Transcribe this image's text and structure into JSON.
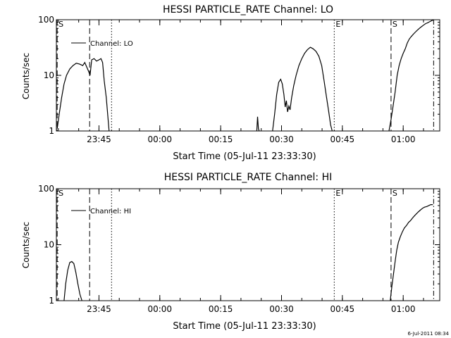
{
  "footer": {
    "timestamp": "6-Jul-2011 08:34"
  },
  "chart_data": [
    {
      "type": "line",
      "title": "HESSI PARTICLE_RATE Channel: LO",
      "xlabel": "Start Time (05-Jul-11 23:33:30)",
      "ylabel": "Counts/sec",
      "yscale": "log",
      "ylim": [
        1,
        100
      ],
      "xlim": [
        -10.5,
        84
      ],
      "x_unit": "minutes after 23:45",
      "yticks": [
        {
          "value": 1,
          "label": "1"
        },
        {
          "value": 10,
          "label": "10"
        },
        {
          "value": 100,
          "label": "100"
        }
      ],
      "xticks": [
        {
          "value": 0,
          "label": "23:45"
        },
        {
          "value": 15,
          "label": "00:00"
        },
        {
          "value": 30,
          "label": "00:15"
        },
        {
          "value": 45,
          "label": "00:30"
        },
        {
          "value": 60,
          "label": "00:45"
        },
        {
          "value": 75,
          "label": "01:00"
        }
      ],
      "legend": {
        "label": "Channel: LO",
        "position": "top-left"
      },
      "markers": [
        {
          "x": -10.3,
          "style": "dashed",
          "label": "S"
        },
        {
          "x": -2.3,
          "style": "dashed",
          "label": ""
        },
        {
          "x": 3.1,
          "style": "dotted",
          "label": ""
        },
        {
          "x": 58.0,
          "style": "dotted",
          "label": "E"
        },
        {
          "x": 72.0,
          "style": "dashed",
          "label": "S"
        },
        {
          "x": 82.5,
          "style": "dashdot",
          "label": ""
        }
      ],
      "series": [
        {
          "name": "Channel: LO",
          "segments": [
            {
              "x": [
                -10.3,
                -9.8,
                -9.2,
                -8.6,
                -8,
                -7.2,
                -6.4,
                -5.6,
                -4.8,
                -4,
                -3.5,
                -3,
                -2.6,
                -2.2,
                -1.8,
                -1.2,
                -0.6,
                0,
                0.5,
                0.9,
                1.3,
                1.8,
                2.2,
                2.5
              ],
              "y": [
                1.1,
                2,
                4,
                7,
                10,
                13,
                15,
                16.5,
                16,
                15,
                17,
                14,
                12,
                10,
                19,
                20,
                18,
                19,
                20,
                17,
                8,
                4,
                1.8,
                1
              ]
            },
            {
              "x": [
                38.9,
                39.1,
                39.3,
                39.5
              ],
              "y": [
                1,
                1.8,
                1.1,
                1
              ]
            },
            {
              "x": [
                42.8,
                43.3,
                43.8,
                44.3,
                44.8,
                45.2,
                45.6,
                45.9,
                46.2,
                46.5,
                46.8,
                47.1,
                47.5,
                48,
                48.6,
                49.3,
                50,
                50.7,
                51.4,
                52.1,
                52.8,
                53.5,
                54.2,
                54.9,
                55.5,
                56.1,
                56.6,
                57.1,
                57.5
              ],
              "y": [
                1,
                2,
                4.5,
                7.5,
                8.5,
                7,
                4.5,
                2.7,
                3.5,
                2.2,
                2.8,
                2.4,
                4,
                6.5,
                10,
                15,
                20,
                25,
                29,
                32,
                30,
                27,
                22,
                15,
                8,
                4,
                2.3,
                1.3,
                1
              ]
            },
            {
              "x": [
                71.5,
                72,
                72.5,
                73,
                73.5,
                74,
                74.5,
                75,
                75.5,
                76,
                76.5,
                77,
                77.5,
                78,
                78.5,
                79,
                79.5,
                80,
                80.5,
                81,
                81.5,
                82,
                82.5
              ],
              "y": [
                1,
                1.6,
                2.8,
                5,
                10,
                15,
                20,
                25,
                30,
                38,
                45,
                50,
                55,
                60,
                65,
                70,
                75,
                80,
                85,
                88,
                92,
                96,
                100
              ]
            }
          ]
        }
      ]
    },
    {
      "type": "line",
      "title": "HESSI PARTICLE_RATE Channel: HI",
      "xlabel": "Start Time (05-Jul-11 23:33:30)",
      "ylabel": "Counts/sec",
      "yscale": "log",
      "ylim": [
        1,
        100
      ],
      "xlim": [
        -10.5,
        84
      ],
      "x_unit": "minutes after 23:45",
      "yticks": [
        {
          "value": 1,
          "label": "1"
        },
        {
          "value": 10,
          "label": "10"
        },
        {
          "value": 100,
          "label": "100"
        }
      ],
      "xticks": [
        {
          "value": 0,
          "label": "23:45"
        },
        {
          "value": 15,
          "label": "00:00"
        },
        {
          "value": 30,
          "label": "00:15"
        },
        {
          "value": 45,
          "label": "00:30"
        },
        {
          "value": 60,
          "label": "00:45"
        },
        {
          "value": 75,
          "label": "01:00"
        }
      ],
      "legend": {
        "label": "Channel: HI",
        "position": "top-left"
      },
      "markers": [
        {
          "x": -10.3,
          "style": "dashed",
          "label": "S"
        },
        {
          "x": -2.3,
          "style": "dashed",
          "label": ""
        },
        {
          "x": 3.1,
          "style": "dotted",
          "label": ""
        },
        {
          "x": 58.0,
          "style": "dotted",
          "label": "E"
        },
        {
          "x": 72.0,
          "style": "dashed",
          "label": "S"
        },
        {
          "x": 82.5,
          "style": "dashdot",
          "label": ""
        }
      ],
      "series": [
        {
          "name": "Channel: HI",
          "segments": [
            {
              "x": [
                -8.6,
                -8.2,
                -7.7,
                -7.2,
                -6.7,
                -6.2,
                -5.7,
                -5.2,
                -4.7,
                -4.2
              ],
              "y": [
                1,
                2,
                3.5,
                4.8,
                5,
                4.6,
                3.2,
                2,
                1.3,
                1
              ]
            },
            {
              "x": [
                71.8,
                72.2,
                72.6,
                73,
                73.4,
                73.8,
                74.3,
                74.8,
                75.3,
                75.8,
                76.3,
                76.8,
                77.3,
                77.8,
                78.3,
                78.8,
                79.3,
                79.8,
                80.3,
                80.8,
                81.3,
                81.8,
                82.3
              ],
              "y": [
                1,
                1.8,
                3,
                5,
                8,
                11,
                14,
                17,
                20,
                22,
                25,
                27,
                30,
                33,
                36,
                39,
                42,
                45,
                47,
                48,
                50,
                52,
                52
              ]
            }
          ]
        }
      ]
    }
  ]
}
